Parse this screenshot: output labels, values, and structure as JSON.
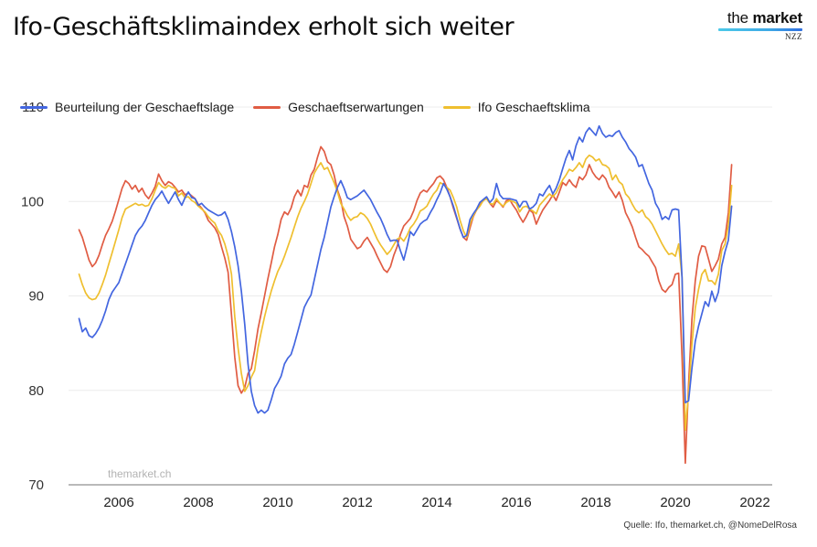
{
  "header": {
    "title": "Ifo-Geschäftsklimaindex erholt sich weiter",
    "logo": {
      "word1": "the",
      "word2": "market",
      "sub": "NZZ"
    }
  },
  "watermark": "themarket.ch",
  "source_note": "Quelle: Ifo,  themarket.ch, @NomeDelRosa",
  "chart_data": {
    "type": "line",
    "title": "Ifo-Geschäftsklimaindex erholt sich weiter",
    "x_frequency": "monthly",
    "x_start": "2005-01",
    "x_end": "2021-06",
    "x_tick_labels": [
      2006,
      2008,
      2010,
      2012,
      2014,
      2016,
      2018,
      2020,
      2022
    ],
    "y_tick_labels": [
      110,
      100,
      90,
      80,
      70
    ],
    "ylim": [
      70,
      110
    ],
    "xlim_years": [
      2004.75,
      2022.4
    ],
    "grid": "horizontal",
    "legend_position": "top-left",
    "colors": {
      "situation": "#4366e0",
      "expectations": "#e05c43",
      "climate": "#efbf2f",
      "gridline": "#ececec",
      "axis": "#b9b9b9",
      "tick_text": "#333333"
    },
    "series": [
      {
        "name": "Beurteilung der Geschaeftslage",
        "color": "#4366e0",
        "values": [
          87.6,
          86.2,
          86.6,
          85.8,
          85.6,
          86.0,
          86.6,
          87.4,
          88.4,
          89.6,
          90.4,
          90.9,
          91.4,
          92.4,
          93.4,
          94.4,
          95.4,
          96.4,
          97.0,
          97.4,
          98.0,
          98.8,
          99.6,
          100.2,
          100.6,
          101.1,
          100.4,
          99.8,
          100.4,
          101.0,
          100.2,
          99.6,
          100.4,
          101.0,
          100.4,
          100.3,
          99.6,
          99.8,
          99.4,
          99.1,
          98.9,
          98.7,
          98.5,
          98.6,
          98.9,
          98.1,
          96.8,
          95.2,
          93.2,
          90.5,
          87.0,
          82.8,
          79.9,
          78.4,
          77.6,
          77.9,
          77.6,
          77.9,
          79.0,
          80.2,
          80.8,
          81.5,
          82.8,
          83.4,
          83.8,
          84.9,
          86.2,
          87.5,
          88.8,
          89.5,
          90.1,
          91.7,
          93.3,
          94.9,
          96.2,
          97.8,
          99.4,
          100.5,
          101.5,
          102.2,
          101.4,
          100.4,
          100.2,
          100.4,
          100.6,
          100.9,
          101.2,
          100.7,
          100.2,
          99.5,
          98.8,
          98.2,
          97.4,
          96.5,
          95.8,
          95.9,
          95.9,
          94.8,
          93.8,
          95.2,
          96.8,
          96.4,
          97.0,
          97.6,
          97.9,
          98.1,
          98.8,
          99.4,
          100.2,
          100.9,
          101.9,
          101.3,
          100.5,
          99.5,
          98.3,
          97.1,
          96.2,
          96.4,
          98.1,
          98.7,
          99.2,
          99.9,
          100.2,
          100.5,
          99.9,
          100.3,
          101.9,
          100.7,
          100.3,
          100.3,
          100.3,
          100.2,
          100.1,
          99.4,
          100.0,
          100.0,
          99.2,
          99.4,
          99.8,
          100.8,
          100.6,
          101.2,
          101.7,
          100.8,
          101.4,
          102.3,
          103.5,
          104.6,
          105.4,
          104.4,
          105.9,
          106.8,
          106.3,
          107.3,
          107.8,
          107.4,
          107.0,
          108.0,
          107.2,
          106.8,
          107.0,
          106.9,
          107.3,
          107.5,
          106.8,
          106.3,
          105.6,
          105.2,
          104.7,
          103.7,
          103.9,
          102.9,
          101.9,
          101.2,
          99.8,
          99.2,
          98.1,
          98.4,
          98.1,
          99.1,
          99.2,
          99.1,
          92.0,
          78.7,
          78.9,
          82.3,
          85.2,
          86.8,
          88.1,
          89.4,
          88.9,
          90.5,
          89.4,
          90.4,
          93.2,
          94.7,
          95.9,
          99.5
        ]
      },
      {
        "name": "Geschaeftserwartungen",
        "color": "#e05c43",
        "values": [
          97.0,
          96.2,
          95.0,
          93.8,
          93.1,
          93.5,
          94.3,
          95.4,
          96.4,
          97.1,
          97.9,
          99.0,
          100.2,
          101.4,
          102.2,
          101.9,
          101.3,
          101.7,
          101.0,
          101.4,
          100.7,
          100.3,
          100.9,
          101.6,
          102.9,
          102.2,
          101.7,
          102.1,
          101.9,
          101.5,
          101.0,
          101.2,
          100.7,
          100.9,
          100.6,
          100.3,
          99.7,
          99.3,
          98.8,
          98.0,
          97.6,
          97.2,
          96.5,
          95.2,
          94.0,
          92.5,
          88.0,
          83.5,
          80.5,
          79.7,
          80.3,
          81.8,
          82.3,
          84.2,
          86.5,
          88.2,
          90.0,
          91.8,
          93.5,
          95.2,
          96.5,
          98.1,
          98.9,
          98.6,
          99.3,
          100.5,
          101.2,
          100.6,
          101.7,
          101.5,
          102.8,
          103.4,
          104.7,
          105.8,
          105.3,
          104.2,
          103.9,
          102.8,
          101.2,
          100.2,
          98.4,
          97.4,
          96.0,
          95.5,
          95.0,
          95.2,
          95.8,
          96.2,
          95.6,
          95.0,
          94.2,
          93.5,
          92.8,
          92.5,
          93.1,
          94.3,
          95.2,
          96.5,
          97.4,
          97.8,
          98.2,
          99.0,
          100.1,
          100.9,
          101.2,
          101.0,
          101.5,
          101.9,
          102.5,
          102.7,
          102.3,
          101.5,
          100.5,
          99.3,
          98.2,
          97.1,
          96.2,
          95.9,
          97.2,
          98.4,
          99.1,
          99.6,
          100.1,
          100.4,
          99.8,
          99.4,
          100.1,
          99.8,
          99.4,
          100.1,
          100.2,
          99.6,
          99.1,
          98.4,
          97.8,
          98.4,
          99.1,
          98.8,
          97.6,
          98.4,
          99.1,
          99.6,
          100.1,
          100.7,
          100.1,
          101.0,
          102.0,
          101.7,
          102.3,
          101.8,
          101.5,
          102.6,
          102.3,
          102.8,
          103.9,
          103.1,
          102.6,
          102.3,
          102.8,
          102.4,
          101.5,
          101.0,
          100.4,
          101.0,
          100.1,
          98.8,
          98.1,
          97.3,
          96.2,
          95.2,
          94.9,
          94.5,
          94.2,
          93.6,
          93.0,
          91.6,
          90.7,
          90.4,
          90.9,
          91.2,
          92.3,
          92.4,
          83.6,
          72.3,
          80.7,
          87.5,
          91.6,
          94.2,
          95.3,
          95.2,
          93.9,
          92.6,
          93.2,
          93.9,
          95.5,
          96.2,
          98.8,
          103.9
        ]
      },
      {
        "name": "Ifo Geschaeftsklima",
        "color": "#efbf2f",
        "values": [
          92.3,
          91.2,
          90.3,
          89.8,
          89.6,
          89.7,
          90.3,
          91.2,
          92.2,
          93.4,
          94.6,
          95.8,
          97.0,
          98.3,
          99.2,
          99.4,
          99.6,
          99.8,
          99.6,
          99.7,
          99.5,
          99.6,
          100.3,
          101.2,
          102.0,
          101.6,
          101.4,
          101.7,
          101.5,
          101.4,
          100.6,
          100.9,
          100.4,
          100.5,
          100.1,
          99.9,
          99.5,
          99.2,
          98.9,
          98.4,
          98.0,
          97.7,
          96.9,
          96.4,
          95.5,
          94.2,
          92.3,
          87.8,
          84.5,
          81.8,
          79.9,
          80.5,
          81.4,
          82.1,
          84.5,
          86.2,
          87.8,
          89.2,
          90.5,
          91.6,
          92.6,
          93.3,
          94.2,
          95.2,
          96.2,
          97.3,
          98.4,
          99.3,
          100.0,
          100.8,
          101.9,
          103.0,
          103.6,
          104.1,
          103.4,
          103.6,
          102.8,
          102.0,
          101.0,
          99.8,
          99.2,
          98.5,
          98.0,
          98.3,
          98.4,
          98.8,
          98.6,
          98.2,
          97.6,
          96.8,
          96.0,
          95.4,
          94.9,
          94.4,
          94.8,
          95.4,
          96.0,
          96.2,
          95.8,
          96.4,
          97.2,
          97.6,
          98.2,
          99.0,
          99.2,
          99.5,
          100.2,
          100.8,
          101.2,
          102.0,
          101.8,
          101.5,
          101.2,
          100.4,
          99.4,
          98.0,
          96.9,
          96.2,
          97.6,
          98.5,
          99.1,
          99.5,
          100.1,
          100.3,
          99.8,
          99.7,
          100.3,
          99.8,
          99.5,
          99.9,
          100.1,
          100.0,
          99.8,
          98.9,
          99.4,
          99.5,
          99.2,
          99.0,
          98.7,
          99.6,
          100.0,
          100.4,
          100.8,
          100.5,
          100.9,
          101.6,
          102.3,
          102.8,
          103.4,
          103.2,
          103.6,
          104.1,
          103.6,
          104.5,
          104.9,
          104.7,
          104.3,
          104.5,
          103.9,
          103.8,
          103.5,
          102.3,
          102.8,
          102.1,
          101.8,
          100.8,
          100.4,
          99.7,
          99.1,
          98.8,
          99.1,
          98.4,
          98.1,
          97.6,
          96.9,
          96.2,
          95.5,
          94.9,
          94.4,
          94.5,
          94.2,
          95.5,
          92.0,
          75.8,
          79.7,
          84.8,
          88.7,
          90.7,
          92.3,
          92.8,
          91.6,
          91.6,
          91.2,
          92.3,
          94.8,
          95.5,
          97.5,
          101.7
        ]
      }
    ]
  }
}
